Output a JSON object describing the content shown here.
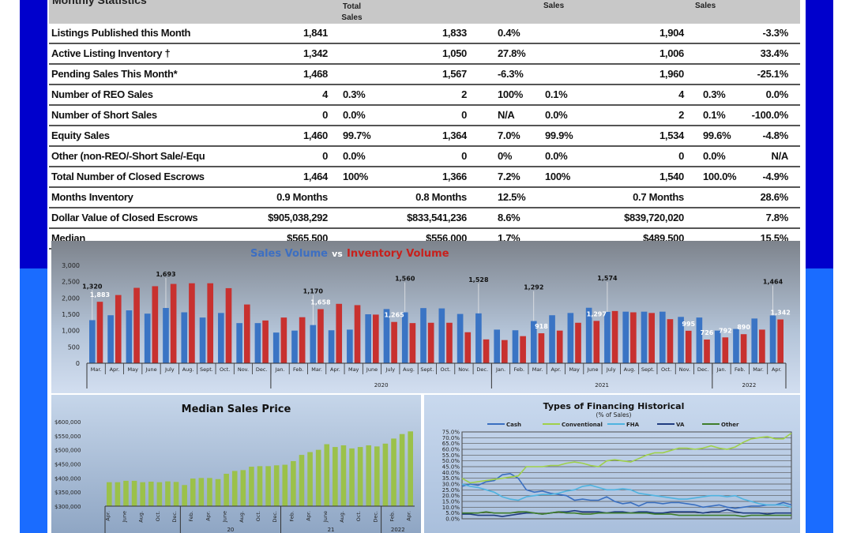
{
  "colors": {
    "frame": "#0000cc",
    "frame_lower": "#1a6cff",
    "sales_bar": "#3a74c4",
    "inventory_bar": "#c8312f",
    "median_bar": "#9bc14a",
    "header_bg": "#c8c8c8"
  },
  "table": {
    "title": "Monthly Statistics",
    "headers": {
      "col2": "Total Sales",
      "col5": "Sales",
      "col7": "Sales"
    },
    "rows": [
      [
        "Listings Published this Month",
        "1,841",
        "",
        "1,833",
        "0.4%",
        "",
        "1,904",
        "",
        "-3.3%"
      ],
      [
        "Active Listing Inventory †",
        "1,342",
        "",
        "1,050",
        "27.8%",
        "",
        "1,006",
        "",
        "33.4%"
      ],
      [
        "Pending Sales This Month*",
        "1,468",
        "",
        "1,567",
        "-6.3%",
        "",
        "1,960",
        "",
        "-25.1%"
      ],
      [
        "Number of REO Sales",
        "4",
        "0.3%",
        "2",
        "100%",
        "0.1%",
        "4",
        "0.3%",
        "0.0%"
      ],
      [
        "Number of Short Sales",
        "0",
        "0.0%",
        "0",
        "N/A",
        "0.0%",
        "2",
        "0.1%",
        "-100.0%"
      ],
      [
        "Equity Sales",
        "1,460",
        "99.7%",
        "1,364",
        "7.0%",
        "99.9%",
        "1,534",
        "99.6%",
        "-4.8%"
      ],
      [
        "Other (non-REO/-Short Sale/-Equ",
        "0",
        "0.0%",
        "0",
        "0%",
        "0.0%",
        "0",
        "0.0%",
        "N/A"
      ],
      [
        "Total Number of Closed Escrows",
        "1,464",
        "100%",
        "1,366",
        "7.2%",
        "100%",
        "1,540",
        "100.0%",
        "-4.9%"
      ],
      [
        "Months Inventory",
        "0.9 Months",
        "",
        "0.8 Months",
        "12.5%",
        "",
        "0.7 Months",
        "",
        "28.6%"
      ],
      [
        "Dollar Value of Closed Escrows",
        "$905,038,292",
        "",
        "$833,541,236",
        "8.6%",
        "",
        "$839,720,020",
        "",
        "7.8%"
      ],
      [
        "Median",
        "$565,500",
        "",
        "$556,000",
        "1.7%",
        "",
        "$489,500",
        "",
        "15.5%"
      ]
    ]
  },
  "chart_data": [
    {
      "type": "bar",
      "title_part1": "Sales Volume",
      "title_vs": "vs",
      "title_part2": "Inventory Volume",
      "categories": [
        "Mar.",
        "Apr.",
        "May",
        "June",
        "July",
        "Aug.",
        "Sept.",
        "Oct.",
        "Nov.",
        "Dec.",
        "Jan.",
        "Feb.",
        "Mar.",
        "Apr.",
        "May",
        "June",
        "July",
        "Aug.",
        "Sept.",
        "Oct.",
        "Nov.",
        "Dec.",
        "Jan.",
        "Feb.",
        "Mar.",
        "Apr.",
        "May",
        "June",
        "July",
        "Aug.",
        "Sept.",
        "Oct.",
        "Nov.",
        "Dec.",
        "Jan.",
        "Feb.",
        "Mar.",
        "Apr."
      ],
      "year_groups": [
        {
          "label": "",
          "start": 0,
          "count": 10
        },
        {
          "label": "2020",
          "start": 10,
          "count": 12
        },
        {
          "label": "2021",
          "start": 22,
          "count": 12
        },
        {
          "label": "2022",
          "start": 34,
          "count": 4
        }
      ],
      "series": [
        {
          "name": "Sales Volume",
          "values": [
            1320,
            1470,
            1620,
            1520,
            1693,
            1560,
            1400,
            1540,
            1230,
            1230,
            940,
            1000,
            1170,
            1010,
            1030,
            1500,
            1660,
            1560,
            1690,
            1680,
            1510,
            1528,
            1030,
            1010,
            1292,
            1470,
            1540,
            1700,
            1574,
            1580,
            1580,
            1580,
            1420,
            1400,
            1000,
            1050,
            1370,
            1464
          ]
        },
        {
          "name": "Inventory Volume",
          "values": [
            1883,
            2090,
            2310,
            2360,
            2430,
            2450,
            2450,
            2300,
            1800,
            1310,
            1400,
            1410,
            1658,
            1820,
            1780,
            1490,
            1265,
            1230,
            1240,
            1240,
            950,
            730,
            710,
            830,
            918,
            1000,
            1240,
            1297,
            1600,
            1560,
            1540,
            1350,
            995,
            726,
            792,
            890,
            1030,
            1342
          ]
        }
      ],
      "data_labels": [
        {
          "series": 0,
          "index": 0,
          "text": "1,320"
        },
        {
          "series": 1,
          "index": 0,
          "text": "1,883"
        },
        {
          "series": 0,
          "index": 4,
          "text": "1,693"
        },
        {
          "series": 0,
          "index": 12,
          "text": "1,170"
        },
        {
          "series": 1,
          "index": 12,
          "text": "1,658"
        },
        {
          "series": 1,
          "index": 16,
          "text": "1,265"
        },
        {
          "series": 0,
          "index": 17,
          "text": "1,560"
        },
        {
          "series": 0,
          "index": 21,
          "text": "1,528"
        },
        {
          "series": 0,
          "index": 24,
          "text": "1,292"
        },
        {
          "series": 1,
          "index": 24,
          "text": "918"
        },
        {
          "series": 1,
          "index": 27,
          "text": "1,297"
        },
        {
          "series": 0,
          "index": 28,
          "text": "1,574"
        },
        {
          "series": 1,
          "index": 32,
          "text": "995"
        },
        {
          "series": 1,
          "index": 33,
          "text": "726"
        },
        {
          "series": 1,
          "index": 34,
          "text": "792"
        },
        {
          "series": 1,
          "index": 35,
          "text": "890"
        },
        {
          "series": 0,
          "index": 37,
          "text": "1,464"
        },
        {
          "series": 1,
          "index": 37,
          "text": "1,342"
        }
      ],
      "yticks": [
        "0",
        "500",
        "1,000",
        "1,500",
        "2,000",
        "2,500",
        "3,000"
      ],
      "ylim": [
        0,
        3000
      ]
    },
    {
      "type": "bar",
      "title": "Median Sales Price",
      "x_labels": [
        "Apr.",
        "June",
        "Aug.",
        "Oct.",
        "Dec.",
        "Feb.",
        "Apr.",
        "June",
        "Aug.",
        "Oct.",
        "Dec.",
        "Feb.",
        "Apr.",
        "June",
        "Aug.",
        "Oct.",
        "Dec.",
        "Feb.",
        "Apr."
      ],
      "year_labels": [
        "20",
        "21",
        "2022"
      ],
      "values": [
        385000,
        385000,
        390000,
        390000,
        385000,
        387000,
        385000,
        388000,
        386000,
        375000,
        398000,
        400000,
        400000,
        396000,
        415000,
        425000,
        428000,
        440000,
        442000,
        442000,
        445000,
        447000,
        460000,
        482000,
        492000,
        500000,
        520000,
        510000,
        516000,
        505000,
        510000,
        516000,
        512000,
        522000,
        540000,
        556000,
        565500
      ],
      "yticks": [
        "$300,000",
        "$350,000",
        "$400,000",
        "$450,000",
        "$500,000",
        "$550,000",
        "$600,000"
      ],
      "ylim": [
        300000,
        600000
      ]
    },
    {
      "type": "line",
      "title": "Types of Financing Historical",
      "subtitle": "(% of Sales)",
      "legend_placement": "top",
      "yticks": [
        "0.0%",
        "5.0%",
        "10.0%",
        "15.0%",
        "20.0%",
        "25.0%",
        "30.0%",
        "35.0%",
        "40.0%",
        "45.0%",
        "50.0%",
        "55.0%",
        "60.0%",
        "65.0%",
        "70.0%",
        "75.0%"
      ],
      "ylim": [
        0,
        75
      ],
      "series": [
        {
          "name": "Cash",
          "color": "#3a6fc0",
          "values": [
            28,
            30,
            29,
            32,
            33,
            38,
            39,
            35,
            25,
            23,
            24,
            22,
            21,
            20,
            16,
            17,
            16,
            16,
            19,
            15,
            13,
            14,
            11,
            14,
            14,
            13,
            14,
            14,
            13,
            12,
            10,
            11,
            12,
            10,
            9,
            10,
            11,
            11,
            12,
            12,
            14,
            12
          ]
        },
        {
          "name": "Conventional",
          "color": "#9fd04a",
          "values": [
            35,
            31,
            32,
            33,
            34,
            35,
            36,
            37,
            45,
            45,
            45,
            46,
            46,
            48,
            49,
            48,
            46,
            45,
            50,
            51,
            50,
            49,
            52,
            55,
            57,
            57,
            59,
            61,
            61,
            60,
            61,
            63,
            61,
            60,
            62,
            66,
            69,
            70,
            71,
            69,
            69,
            74
          ]
        },
        {
          "name": "FHA",
          "color": "#4fb3e0",
          "values": [
            30,
            28,
            27,
            25,
            23,
            19,
            17,
            16,
            19,
            20,
            21,
            21,
            22,
            24,
            25,
            28,
            29,
            27,
            25,
            25,
            26,
            25,
            22,
            21,
            20,
            19,
            18,
            17,
            17,
            18,
            19,
            20,
            20,
            19,
            20,
            17,
            15,
            13,
            12,
            12,
            12,
            10
          ]
        },
        {
          "name": "VA",
          "color": "#1f3c80",
          "values": [
            4,
            4,
            3,
            3,
            3,
            2,
            3,
            4,
            5,
            5,
            4,
            5,
            6,
            6,
            7,
            6,
            6,
            6,
            5,
            6,
            6,
            5,
            6,
            6,
            5,
            5,
            6,
            6,
            6,
            6,
            5,
            6,
            6,
            8,
            6,
            5,
            5,
            5,
            4,
            5,
            5,
            5
          ]
        },
        {
          "name": "Other",
          "color": "#3f7d2a",
          "values": [
            5,
            5,
            5,
            6,
            5,
            5,
            5,
            6,
            6,
            5,
            4,
            5,
            6,
            5,
            5,
            4,
            4,
            5,
            5,
            5,
            5,
            5,
            5,
            5,
            4,
            4,
            4,
            3,
            3,
            3,
            3,
            3,
            3,
            3,
            3,
            2,
            3,
            3,
            3,
            3,
            3,
            3
          ]
        }
      ]
    }
  ]
}
